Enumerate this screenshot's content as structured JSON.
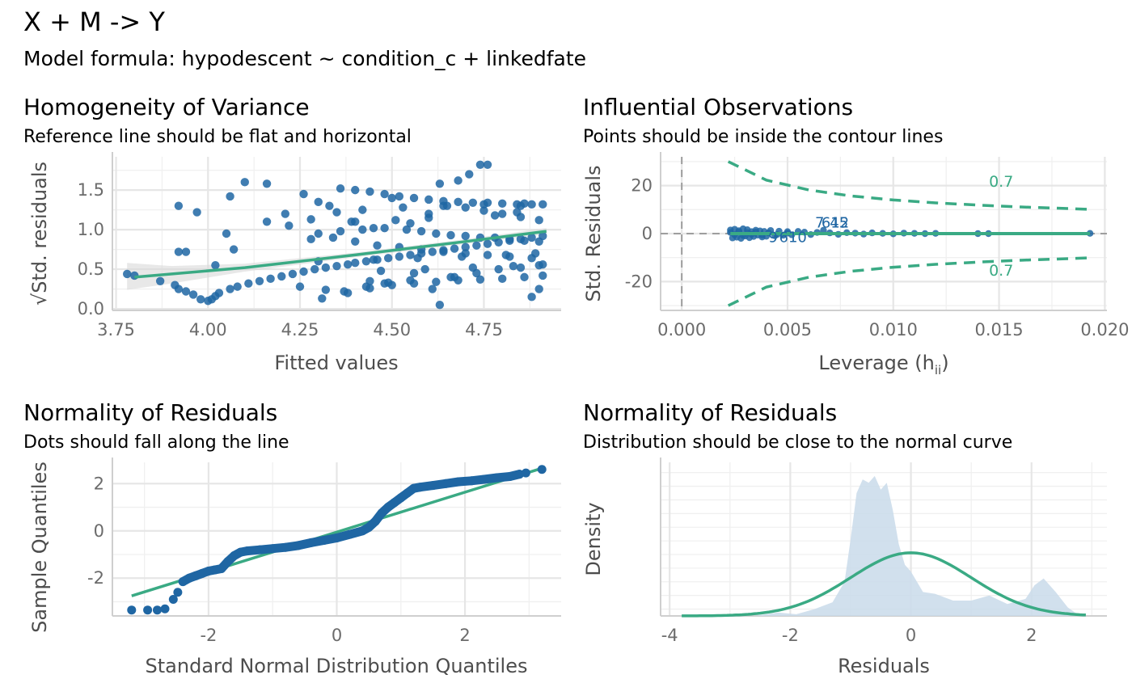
{
  "title": "X + M -> Y",
  "subtitle": "Model formula: hypodescent ~ condition_c + linkedfate",
  "colors": {
    "points": "#1f66a3",
    "line": "#3aaa84",
    "ci_band": "#d9d9d9",
    "density_fill": "#c9dbea",
    "ref_dash": "#9e9e9e"
  },
  "chart_data": [
    {
      "type": "scatter",
      "title": "Homogeneity of Variance",
      "subtitle": "Reference line should be flat and horizontal",
      "xlabel": "Fitted values",
      "ylabel": "√Std. residuals",
      "xlim": [
        3.74,
        4.96
      ],
      "ylim": [
        -0.02,
        1.92
      ],
      "x_ticks": [
        3.75,
        4.0,
        4.25,
        4.5,
        4.75
      ],
      "x_tick_labels": [
        "3.75",
        "4.00",
        "4.25",
        "4.50",
        "4.75"
      ],
      "y_ticks": [
        0.0,
        0.5,
        1.0,
        1.5
      ],
      "y_tick_labels": [
        "0.0",
        "0.5",
        "1.0",
        "1.5"
      ],
      "grid": true,
      "points": {
        "x": [
          3.78,
          3.8,
          3.87,
          3.91,
          3.92,
          3.94,
          3.96,
          3.98,
          4.0,
          4.01,
          4.02,
          4.03,
          4.06,
          4.08,
          4.11,
          4.14,
          4.17,
          4.2,
          4.23,
          4.26,
          4.29,
          4.32,
          4.35,
          4.38,
          4.4,
          4.43,
          4.46,
          4.49,
          4.52,
          4.55,
          4.58,
          4.61,
          4.64,
          4.67,
          4.7,
          4.73,
          4.76,
          4.79,
          4.82,
          4.85,
          4.88,
          4.91,
          3.92,
          3.94,
          3.97,
          4.02,
          4.06,
          4.1,
          4.16,
          4.21,
          4.26,
          4.3,
          4.33,
          4.36,
          4.4,
          4.44,
          4.48,
          4.52,
          4.56,
          4.6,
          4.64,
          4.68,
          4.72,
          4.76,
          4.8,
          4.84,
          4.88,
          4.91,
          3.92,
          4.05,
          4.07,
          4.16,
          4.22,
          4.28,
          4.35,
          4.4,
          4.45,
          4.5,
          4.55,
          4.6,
          4.65,
          4.7,
          4.75,
          4.8,
          4.85,
          4.9,
          4.3,
          4.36,
          4.42,
          4.48,
          4.54,
          4.58,
          4.62,
          4.66,
          4.7,
          4.74,
          4.78,
          4.82,
          4.86,
          4.9,
          4.28,
          4.34,
          4.4,
          4.46,
          4.52,
          4.58,
          4.64,
          4.7,
          4.76,
          4.82,
          4.88,
          4.25,
          4.32,
          4.38,
          4.44,
          4.5,
          4.56,
          4.62,
          4.68,
          4.74,
          4.8,
          4.86,
          4.91,
          4.31,
          4.37,
          4.43,
          4.49,
          4.55,
          4.61,
          4.67,
          4.73,
          4.79,
          4.85,
          4.9,
          4.44,
          4.56,
          4.63,
          4.74,
          4.76,
          4.85,
          4.63,
          4.68,
          4.71,
          4.9,
          4.48,
          4.66,
          4.88,
          4.39,
          4.51,
          4.6,
          4.78,
          4.84,
          4.3,
          4.45,
          4.57,
          4.69,
          4.81,
          4.89,
          4.42,
          4.53,
          4.64,
          4.75,
          4.86,
          4.47,
          4.59,
          4.72,
          4.83,
          4.91
        ],
        "y": [
          0.44,
          0.42,
          0.35,
          0.3,
          0.25,
          0.22,
          0.18,
          0.12,
          0.1,
          0.12,
          0.16,
          0.2,
          0.25,
          0.28,
          0.32,
          0.35,
          0.38,
          0.41,
          0.44,
          0.47,
          0.5,
          0.52,
          0.54,
          0.56,
          0.58,
          0.6,
          0.62,
          0.64,
          0.66,
          0.68,
          0.7,
          0.72,
          0.74,
          0.76,
          0.78,
          0.8,
          0.82,
          0.84,
          0.86,
          0.88,
          0.9,
          0.92,
          1.3,
          0.72,
          1.22,
          0.55,
          1.42,
          1.6,
          1.1,
          1.2,
          1.45,
          1.35,
          1.3,
          1.52,
          1.5,
          1.48,
          1.45,
          1.42,
          1.4,
          1.38,
          1.36,
          1.35,
          1.34,
          1.34,
          1.33,
          1.32,
          1.32,
          1.32,
          0.72,
          0.95,
          0.75,
          1.58,
          1.05,
          1.13,
          1.22,
          1.1,
          1.02,
          1.4,
          1.08,
          1.2,
          1.3,
          1.28,
          1.24,
          1.2,
          1.16,
          1.12,
          0.95,
          0.98,
          1.0,
          1.02,
          1.0,
          0.98,
          0.95,
          0.93,
          0.92,
          0.9,
          0.9,
          0.88,
          0.86,
          0.85,
          0.88,
          0.9,
          0.85,
          0.8,
          0.78,
          0.75,
          0.72,
          0.7,
          0.68,
          0.66,
          0.64,
          0.28,
          0.24,
          0.2,
          0.26,
          0.3,
          0.32,
          0.34,
          0.36,
          0.37,
          0.38,
          0.4,
          0.42,
          0.13,
          0.22,
          0.28,
          0.33,
          0.36,
          0.25,
          0.4,
          0.45,
          0.5,
          0.52,
          0.55,
          0.35,
          0.45,
          0.05,
          1.82,
          1.82,
          1.3,
          1.58,
          1.62,
          1.7,
          0.25,
          0.32,
          0.4,
          0.15,
          1.1,
          1.12,
          1.15,
          1.18,
          1.22,
          0.6,
          0.62,
          0.64,
          0.66,
          0.68,
          0.7,
          1.25,
          1.28,
          1.3,
          1.32,
          1.33,
          0.48,
          0.5,
          0.52,
          0.54,
          0.56
        ]
      },
      "smooth_line": {
        "x": [
          3.8,
          4.1,
          4.4,
          4.7,
          4.92
        ],
        "y": [
          0.4,
          0.52,
          0.68,
          0.85,
          0.98
        ]
      },
      "ci_band": {
        "x": [
          3.78,
          3.9,
          4.1,
          4.4,
          4.7,
          4.92
        ],
        "y_low": [
          0.24,
          0.32,
          0.47,
          0.65,
          0.82,
          0.94
        ],
        "y_high": [
          0.58,
          0.54,
          0.57,
          0.71,
          0.88,
          1.02
        ]
      }
    },
    {
      "type": "scatter",
      "title": "Influential Observations",
      "subtitle": "Points should be inside the contour lines",
      "xlabel": "Leverage (h",
      "xlabel_subscript": "ii",
      "xlabel_close": ")",
      "ylabel": "Std. Residuals",
      "xlim": [
        -0.001,
        0.0201
      ],
      "ylim": [
        -32,
        32
      ],
      "x_ticks": [
        0.0,
        0.005,
        0.01,
        0.015,
        0.02
      ],
      "x_tick_labels": [
        "0.000",
        "0.005",
        "0.010",
        "0.015",
        "0.020"
      ],
      "y_ticks": [
        -20,
        0,
        20
      ],
      "y_tick_labels": [
        "-20",
        "0",
        "20"
      ],
      "grid": true,
      "reference_lines": {
        "x": 0,
        "y": 0
      },
      "points": {
        "x": [
          0.0023,
          0.0024,
          0.0025,
          0.0026,
          0.0027,
          0.0028,
          0.0029,
          0.003,
          0.0031,
          0.0032,
          0.0033,
          0.0034,
          0.0035,
          0.0036,
          0.0037,
          0.0038,
          0.0039,
          0.004,
          0.0042,
          0.0044,
          0.0046,
          0.0048,
          0.005,
          0.0052,
          0.0055,
          0.0058,
          0.0061,
          0.0064,
          0.0067,
          0.007,
          0.0074,
          0.0078,
          0.0082,
          0.0086,
          0.009,
          0.0095,
          0.01,
          0.0105,
          0.011,
          0.0115,
          0.012,
          0.014,
          0.0145,
          0.0193,
          0.0023,
          0.0025,
          0.0027,
          0.0029,
          0.0031,
          0.0033,
          0.0035,
          0.0038,
          0.0041,
          0.0045,
          0.005
        ],
        "y": [
          1.5,
          -1.8,
          1.8,
          -1.5,
          1.2,
          -2.0,
          2.0,
          -1.0,
          1.6,
          -1.7,
          0.8,
          -1.2,
          1.4,
          -0.6,
          1.1,
          -1.4,
          0.9,
          -1.1,
          1.3,
          -0.9,
          1.0,
          -0.7,
          0.8,
          -0.5,
          0.9,
          0.6,
          -0.4,
          0.5,
          1.4,
          0.3,
          -0.3,
          0.4,
          0.2,
          -0.2,
          0.3,
          0.1,
          -0.1,
          0.2,
          0.1,
          0.0,
          0.1,
          0.0,
          0.0,
          0.1,
          0.5,
          -0.5,
          0.7,
          -0.8,
          0.4,
          -0.3,
          0.6,
          -0.6,
          0.3,
          -0.4,
          0.2
        ]
      },
      "point_labels": [
        {
          "text": "7",
          "x": 0.0063,
          "y": 2.5
        },
        {
          "text": "612",
          "x": 0.0066,
          "y": 2.5
        },
        {
          "text": "45",
          "x": 0.007,
          "y": 2.5
        },
        {
          "text": "9",
          "x": 0.0041,
          "y": -3.5
        },
        {
          "text": "610",
          "x": 0.0046,
          "y": -3.5
        }
      ],
      "fit_line": {
        "x": [
          0.0023,
          0.0193
        ],
        "y": [
          0,
          0
        ]
      },
      "contours": {
        "label": "0.7",
        "upper": {
          "x": [
            0.0022,
            0.004,
            0.006,
            0.008,
            0.01,
            0.012,
            0.014,
            0.016,
            0.018,
            0.0193
          ],
          "y": [
            30.0,
            22.3,
            18.2,
            15.7,
            14.0,
            12.8,
            11.9,
            11.1,
            10.5,
            10.1
          ]
        },
        "lower": {
          "x": [
            0.0022,
            0.004,
            0.006,
            0.008,
            0.01,
            0.012,
            0.014,
            0.016,
            0.018,
            0.0193
          ],
          "y": [
            -30.0,
            -22.3,
            -18.2,
            -15.7,
            -14.0,
            -12.8,
            -11.9,
            -11.1,
            -10.5,
            -10.1
          ]
        },
        "label_upper": {
          "x": 0.0151,
          "y": 19.5
        },
        "label_lower": {
          "x": 0.0151,
          "y": -17.5
        }
      }
    },
    {
      "type": "scatter",
      "title": "Normality of Residuals",
      "subtitle": "Dots should fall along the line",
      "xlabel": "Standard Normal Distribution Quantiles",
      "ylabel": "Sample Quantiles",
      "xlim": [
        -3.5,
        3.5
      ],
      "ylim": [
        -3.6,
        2.9
      ],
      "x_ticks": [
        -2,
        0,
        2
      ],
      "x_tick_labels": [
        "-2",
        "0",
        "2"
      ],
      "y_ticks": [
        -2,
        0,
        2
      ],
      "y_tick_labels": [
        "-2",
        "0",
        "2"
      ],
      "grid": true,
      "reference_line": {
        "x": [
          -3.2,
          3.2
        ],
        "y": [
          -2.75,
          2.65
        ]
      },
      "points": {
        "x": [
          -3.2,
          -2.95,
          -2.8,
          -2.68,
          -2.55,
          -2.48,
          -2.4,
          -2.3,
          -2.2,
          -2.1,
          -2.0,
          -1.9,
          -1.8,
          -1.7,
          -1.6,
          -1.5,
          -1.4,
          -1.2,
          -1.0,
          -0.8,
          -0.6,
          -0.4,
          -0.2,
          0.0,
          0.2,
          0.4,
          0.5,
          0.6,
          0.7,
          0.8,
          0.9,
          1.0,
          1.1,
          1.2,
          1.3,
          1.5,
          1.7,
          1.9,
          2.1,
          2.3,
          2.5,
          2.7,
          2.85,
          2.95,
          3.2
        ],
        "y": [
          -3.35,
          -3.35,
          -3.35,
          -3.3,
          -2.9,
          -2.6,
          -2.15,
          -2.0,
          -1.9,
          -1.8,
          -1.7,
          -1.65,
          -1.6,
          -1.3,
          -1.05,
          -0.9,
          -0.85,
          -0.8,
          -0.75,
          -0.7,
          -0.62,
          -0.5,
          -0.4,
          -0.3,
          -0.15,
          0.0,
          0.15,
          0.4,
          0.75,
          1.0,
          1.2,
          1.4,
          1.6,
          1.8,
          1.85,
          1.92,
          2.0,
          2.08,
          2.12,
          2.18,
          2.25,
          2.3,
          2.4,
          2.45,
          2.6
        ]
      }
    },
    {
      "type": "area",
      "title": "Normality of Residuals",
      "subtitle": "Distribution should be close to the normal curve",
      "xlabel": "Residuals",
      "ylabel": "Density",
      "xlim": [
        -4.15,
        3.25
      ],
      "ylim": [
        0,
        0.9
      ],
      "x_ticks": [
        -4,
        -2,
        0,
        2
      ],
      "x_tick_labels": [
        "-4",
        "-2",
        "0",
        "2"
      ],
      "y_ticks": [],
      "grid": true,
      "density": {
        "x": [
          -2.6,
          -2.2,
          -1.9,
          -1.6,
          -1.3,
          -1.1,
          -1.0,
          -0.9,
          -0.8,
          -0.7,
          -0.6,
          -0.5,
          -0.4,
          -0.3,
          -0.2,
          -0.1,
          0.0,
          0.2,
          0.4,
          0.7,
          1.0,
          1.3,
          1.6,
          1.9,
          2.05,
          2.2,
          2.4,
          2.6,
          2.8
        ],
        "y": [
          0.0,
          0.02,
          0.01,
          0.04,
          0.08,
          0.2,
          0.45,
          0.72,
          0.8,
          0.78,
          0.82,
          0.74,
          0.78,
          0.62,
          0.42,
          0.3,
          0.26,
          0.14,
          0.13,
          0.09,
          0.09,
          0.12,
          0.07,
          0.1,
          0.18,
          0.22,
          0.14,
          0.05,
          0.0
        ]
      },
      "normal_curve": {
        "mean": 0.0,
        "sd": 1.0,
        "x_range": [
          -3.8,
          2.9
        ],
        "peak": 0.37
      }
    }
  ]
}
